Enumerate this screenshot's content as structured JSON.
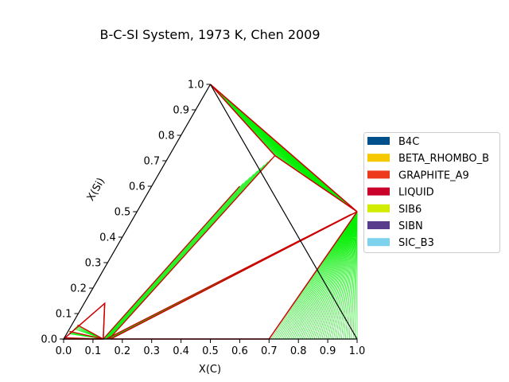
{
  "chart_data": {
    "type": "ternary",
    "title": "B-C-SI System, 1973 K, Chen 2009",
    "xlabel": "X(C)",
    "ylabel": "X(Si)",
    "xlim": [
      0.0,
      1.0
    ],
    "ylim": [
      0.0,
      1.0
    ],
    "xticks": [
      "0.0",
      "0.1",
      "0.2",
      "0.3",
      "0.4",
      "0.5",
      "0.6",
      "0.7",
      "0.8",
      "0.9",
      "1.0"
    ],
    "yticks": [
      "0.0",
      "0.1",
      "0.2",
      "0.3",
      "0.4",
      "0.5",
      "0.6",
      "0.7",
      "0.8",
      "0.9",
      "1.0"
    ],
    "legend_position": "right",
    "legend": [
      {
        "name": "B4C",
        "color": "#00508c"
      },
      {
        "name": "BETA_RHOMBO_B",
        "color": "#f5c800"
      },
      {
        "name": "GRAPHITE_A9",
        "color": "#ee3a1c"
      },
      {
        "name": "LIQUID",
        "color": "#c8002a"
      },
      {
        "name": "SIB6",
        "color": "#d2ec00"
      },
      {
        "name": "SIBN",
        "color": "#5a3c8c"
      },
      {
        "name": "SIC_B3",
        "color": "#7dd2ee"
      }
    ],
    "colors": {
      "boundary": "#cc0000",
      "tie_line": "#00ee00",
      "phase_line": "#b89600"
    },
    "three_phase_triangles": [
      [
        [
          0.0,
          1.0
        ],
        [
          0.36,
          0.72
        ],
        [
          0.75,
          0.5
        ]
      ],
      [
        [
          0.16,
          0.0
        ],
        [
          0.75,
          0.5
        ],
        [
          0.7,
          0.0
        ]
      ],
      [
        [
          0.0,
          0.0
        ],
        [
          0.135,
          0.0
        ],
        [
          0.07,
          0.14
        ]
      ]
    ],
    "two_phase_regions": [
      {
        "from": [
          [
            0.0,
            1.0
          ],
          [
            0.75,
            0.5
          ]
        ],
        "to": [
          [
            0.36,
            0.72
          ],
          [
            0.75,
            0.5
          ]
        ],
        "count": 38
      },
      {
        "from": [
          [
            0.75,
            0.5
          ],
          [
            1.0,
            0.0
          ]
        ],
        "to": [
          [
            0.75,
            0.5
          ],
          [
            0.7,
            0.0
          ]
        ],
        "count": 45
      },
      {
        "from": [
          [
            0.135,
            0.0
          ],
          [
            0.3,
            0.6
          ]
        ],
        "to": [
          [
            0.155,
            0.0
          ],
          [
            0.36,
            0.72
          ]
        ],
        "count": 10
      },
      {
        "from": [
          [
            0.145,
            0.0
          ],
          [
            0.735,
            0.49
          ]
        ],
        "to": [
          [
            0.16,
            0.0
          ],
          [
            0.75,
            0.5
          ]
        ],
        "count": 8
      },
      {
        "from": [
          [
            0.02,
            0.055
          ],
          [
            0.13,
            0.0
          ]
        ],
        "to": [
          [
            0.015,
            0.04
          ],
          [
            0.135,
            0.0
          ]
        ],
        "count": 5
      },
      {
        "from": [
          [
            0.005,
            0.03
          ],
          [
            0.135,
            0.0
          ]
        ],
        "to": [
          [
            0.01,
            0.02
          ],
          [
            0.135,
            0.0
          ]
        ],
        "count": 4
      }
    ],
    "boundary_lines": [
      [
        [
          0.07,
          0.14
        ],
        [
          0.135,
          0.0
        ]
      ],
      [
        [
          0.02,
          0.055
        ],
        [
          0.135,
          0.0
        ]
      ],
      [
        [
          0.005,
          0.03
        ],
        [
          0.135,
          0.0
        ]
      ],
      [
        [
          0.135,
          0.0
        ],
        [
          0.3,
          0.6
        ]
      ],
      [
        [
          0.155,
          0.0
        ],
        [
          0.36,
          0.72
        ]
      ],
      [
        [
          0.145,
          0.0
        ],
        [
          0.735,
          0.49
        ]
      ],
      [
        [
          0.16,
          0.0
        ],
        [
          0.75,
          0.5
        ]
      ],
      [
        [
          0.0,
          0.005
        ],
        [
          0.13,
          0.0
        ]
      ]
    ]
  }
}
